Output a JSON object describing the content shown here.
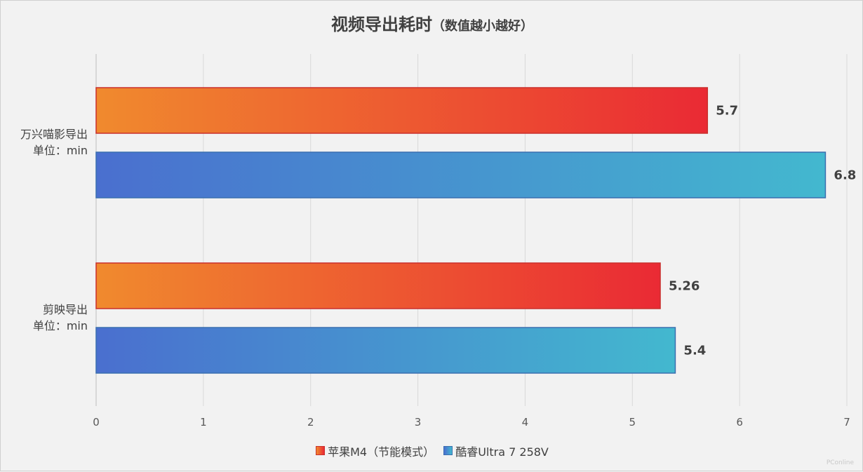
{
  "chart_data": {
    "type": "bar",
    "orientation": "horizontal",
    "title": "视频导出耗时",
    "subtitle": "（数值越小越好）",
    "categories": [
      [
        "万兴喵影导出",
        "单位：min"
      ],
      [
        "剪映导出",
        "单位：min"
      ]
    ],
    "series": [
      {
        "name": "苹果M4（节能模式）",
        "values": [
          5.7,
          5.26
        ],
        "gradient": [
          "#f08a2e",
          "#ea2a34"
        ],
        "stroke": "#c9302c"
      },
      {
        "name": "酷睿Ultra 7 258V",
        "values": [
          6.8,
          5.4
        ],
        "gradient": [
          "#4a6fcf",
          "#43b8cf"
        ],
        "stroke": "#3a6fb0"
      }
    ],
    "data_labels": [
      [
        "5.7",
        "5.26"
      ],
      [
        "6.8",
        "5.4"
      ]
    ],
    "xlim": [
      0,
      7
    ],
    "xticks": [
      "0",
      "1",
      "2",
      "3",
      "4",
      "5",
      "6",
      "7"
    ],
    "grid": true,
    "legend": "bottom"
  },
  "watermark": "PConline"
}
